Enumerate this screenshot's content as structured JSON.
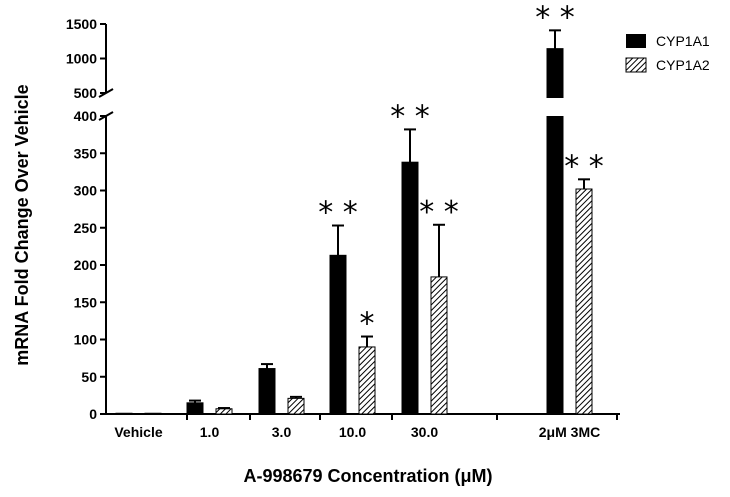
{
  "chart_data": {
    "type": "bar",
    "xlabel": "A-998679 Concentration (μM)",
    "ylabel": "mRNA Fold Change Over Vehicle",
    "categories": [
      "Vehicle",
      "1.0",
      "3.0",
      "10.0",
      "30.0",
      "2μM 3MC"
    ],
    "series": [
      {
        "name": "CYP1A1",
        "values": [
          1,
          15,
          61,
          213,
          338,
          1143
        ],
        "errors": [
          0,
          3,
          6,
          40,
          44,
          265
        ],
        "significance": [
          "",
          "",
          "",
          "**",
          "**",
          "**"
        ],
        "color": "#000000",
        "pattern": "solid"
      },
      {
        "name": "CYP1A2",
        "values": [
          1,
          7,
          21,
          90,
          184,
          302
        ],
        "errors": [
          0,
          1,
          2,
          14,
          70,
          13
        ],
        "significance": [
          "",
          "",
          "",
          "*",
          "**",
          "**"
        ],
        "color": "#000000",
        "pattern": "hatched"
      }
    ],
    "y_axis": {
      "broken": true,
      "lower_segment": {
        "range": [
          0,
          400
        ],
        "ticks": [
          0,
          50,
          100,
          150,
          200,
          250,
          300,
          350,
          400
        ]
      },
      "upper_segment": {
        "range": [
          400,
          1500
        ],
        "ticks": [
          500,
          1000,
          1500
        ]
      }
    },
    "legend": {
      "placement": "top-right",
      "entries": [
        "CYP1A1",
        "CYP1A2"
      ]
    },
    "grid": false
  }
}
